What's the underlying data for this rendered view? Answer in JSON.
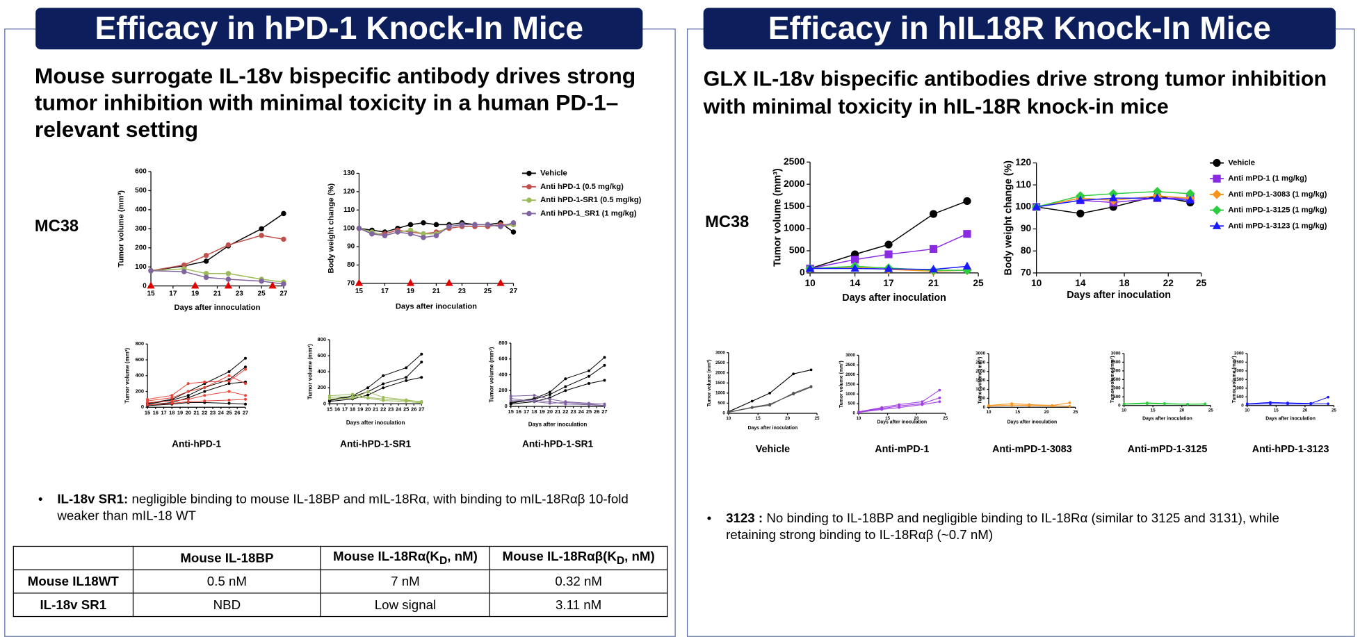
{
  "panels": [
    {
      "header": "Efficacy in hPD-1 Knock-In Mice",
      "subtitle": "Mouse surrogate IL-18v bispecific antibody drives strong tumor inhibition with minimal toxicity in a human PD-1–relevant setting",
      "model": "MC38",
      "bullet": {
        "term": "IL-18v SR1:",
        "text": "negligible binding to mouse IL-18BP and mIL-18Rα, with binding to mIL-18Rαβ 10-fold weaker than mIL-18 WT"
      },
      "table": {
        "columns": [
          [
            "Mouse IL-18BP"
          ],
          [
            "Mouse IL-18Rα(K",
            "D",
            ", nM)"
          ],
          [
            "Mouse IL-18Rαβ(K",
            "D",
            ", nM)"
          ]
        ],
        "rows": [
          [
            "Mouse IL18WT",
            "0.5 nM",
            "7 nM",
            "0.32 nM"
          ],
          [
            "IL-18v SR1",
            "NBD",
            "Low signal",
            "3.11 nM"
          ]
        ]
      }
    },
    {
      "header": "Efficacy in hIL18R Knock-In Mice",
      "subtitle": "GLX IL-18v bispecific antibodies drive strong tumor inhibition with minimal toxicity in hIL-18R knock-in mice",
      "model": "MC38",
      "bullet": {
        "term": "3123 :",
        "text": "No binding to IL-18BP and negligible binding to IL-18Rα (similar to 3125 and 3131), while retaining strong binding to IL-18Rαβ (~0.7 nM)"
      }
    }
  ],
  "chart_data": [
    {
      "type": "line",
      "y_label": "Tumor volume (mm³)",
      "x_label": "Days after innoculation",
      "xlim": [
        15,
        27
      ],
      "xticks": [
        15,
        17,
        19,
        21,
        23,
        25,
        27
      ],
      "ylim": [
        0,
        600
      ],
      "yticks": [
        0,
        100,
        200,
        300,
        400,
        500,
        600
      ],
      "x": [
        15,
        18,
        20,
        22,
        25,
        27
      ],
      "dosing_days": [
        15,
        19,
        22,
        26
      ],
      "series": [
        {
          "color": "#000000",
          "marker": "circle",
          "values": [
            80,
            105,
            130,
            210,
            300,
            380
          ]
        },
        {
          "color": "#c0504d",
          "marker": "circle",
          "values": [
            80,
            110,
            160,
            215,
            265,
            245
          ]
        },
        {
          "color": "#9bbb59",
          "marker": "circle",
          "values": [
            80,
            90,
            65,
            65,
            35,
            20
          ]
        },
        {
          "color": "#8064a2",
          "marker": "circle",
          "values": [
            80,
            75,
            45,
            35,
            25,
            10
          ]
        }
      ]
    },
    {
      "type": "line",
      "y_label": "Body weight change (%)",
      "x_label": "Days after inoculation",
      "xlim": [
        15,
        27
      ],
      "xticks": [
        15,
        17,
        19,
        21,
        23,
        25,
        27
      ],
      "ylim": [
        70,
        130
      ],
      "yticks": [
        70,
        80,
        90,
        100,
        110,
        120,
        130
      ],
      "x": [
        15,
        16,
        17,
        18,
        19,
        20,
        21,
        22,
        23,
        24,
        25,
        26,
        27
      ],
      "dosing_days": [
        15,
        19,
        22,
        26
      ],
      "legend": "right",
      "series": [
        {
          "name": "Vehicle",
          "color": "#000000",
          "marker": "circle",
          "values": [
            100,
            99,
            98,
            100,
            102,
            103,
            102,
            102,
            103,
            102,
            102,
            103,
            98
          ]
        },
        {
          "name": "Anti hPD-1 (0.5 mg/kg)",
          "color": "#c0504d",
          "marker": "circle",
          "values": [
            100,
            97,
            97,
            99,
            98,
            97,
            98,
            100,
            101,
            101,
            101,
            102,
            102
          ]
        },
        {
          "name": "Anti hPD-1-SR1 (0.5 mg/kg)",
          "color": "#9bbb59",
          "marker": "circle",
          "values": [
            100,
            98,
            96,
            98,
            99,
            97,
            97,
            101,
            102,
            102,
            102,
            101,
            102
          ]
        },
        {
          "name": "Anti hPD-1_SR1 (1 mg/kg)",
          "color": "#8064a2",
          "marker": "circle",
          "values": [
            100,
            97,
            96,
            98,
            97,
            95,
            96,
            101,
            102,
            102,
            102,
            101,
            103
          ]
        }
      ]
    },
    {
      "type": "line",
      "title": "Anti-hPD-1",
      "y_label": "Tumor volume (mm³)",
      "xlim": [
        15,
        27
      ],
      "xticks": [
        15,
        16,
        17,
        18,
        19,
        20,
        21,
        22,
        23,
        24,
        25,
        26,
        27
      ],
      "ylim": [
        0,
        800
      ],
      "yticks": [
        0,
        200,
        400,
        600,
        800
      ],
      "x": [
        15,
        18,
        20,
        22,
        25,
        27
      ],
      "series": [
        {
          "color": "#000000",
          "marker": "circle",
          "values": [
            50,
            100,
            200,
            300,
            450,
            620
          ]
        },
        {
          "color": "#000000",
          "marker": "circle",
          "values": [
            40,
            90,
            150,
            250,
            350,
            510
          ]
        },
        {
          "color": "#000000",
          "marker": "circle",
          "values": [
            30,
            60,
            120,
            200,
            300,
            320
          ]
        },
        {
          "color": "#000000",
          "marker": "circle",
          "values": [
            20,
            40,
            60,
            60,
            50,
            40
          ]
        },
        {
          "color": "#e8433a",
          "marker": "circle",
          "values": [
            100,
            150,
            300,
            320,
            330,
            480
          ]
        },
        {
          "color": "#e8433a",
          "marker": "circle",
          "values": [
            80,
            120,
            200,
            250,
            400,
            300
          ]
        },
        {
          "color": "#e8433a",
          "marker": "circle",
          "values": [
            60,
            80,
            100,
            150,
            200,
            150
          ]
        },
        {
          "color": "#e8433a",
          "marker": "circle",
          "values": [
            30,
            50,
            70,
            80,
            90,
            100
          ]
        }
      ]
    },
    {
      "type": "line",
      "title": "Anti-hPD-1-SR1",
      "y_label": "Tumor volume (mm³)",
      "x_label": "Days after inoculation",
      "xlim": [
        15,
        27
      ],
      "xticks": [
        15,
        16,
        17,
        18,
        19,
        20,
        21,
        22,
        23,
        24,
        25,
        26,
        27
      ],
      "ylim": [
        0,
        800
      ],
      "yticks": [
        0,
        200,
        400,
        600,
        800
      ],
      "x": [
        15,
        18,
        20,
        22,
        25,
        27
      ],
      "series": [
        {
          "color": "#000000",
          "marker": "circle",
          "values": [
            50,
            100,
            200,
            350,
            450,
            620
          ]
        },
        {
          "color": "#000000",
          "marker": "circle",
          "values": [
            40,
            90,
            150,
            250,
            330,
            520
          ]
        },
        {
          "color": "#000000",
          "marker": "circle",
          "values": [
            30,
            60,
            110,
            200,
            290,
            330
          ]
        },
        {
          "color": "#9bbb59",
          "marker": "circle",
          "values": [
            100,
            120,
            80,
            60,
            40,
            30
          ]
        },
        {
          "color": "#9bbb59",
          "marker": "circle",
          "values": [
            60,
            70,
            150,
            80,
            50,
            20
          ]
        },
        {
          "color": "#9bbb59",
          "marker": "circle",
          "values": [
            80,
            90,
            70,
            40,
            30,
            10
          ]
        }
      ]
    },
    {
      "type": "line",
      "title": "Anti-hPD-1-SR1",
      "y_label": "Tumor volume (mm³)",
      "x_label": "Days after inoculation",
      "xlim": [
        15,
        27
      ],
      "xticks": [
        15,
        16,
        17,
        18,
        19,
        20,
        21,
        22,
        23,
        24,
        25,
        26,
        27
      ],
      "ylim": [
        0,
        800
      ],
      "yticks": [
        0,
        200,
        400,
        600,
        800
      ],
      "x": [
        15,
        18,
        20,
        22,
        25,
        27
      ],
      "series": [
        {
          "color": "#000000",
          "marker": "circle",
          "values": [
            50,
            100,
            180,
            350,
            450,
            620
          ]
        },
        {
          "color": "#000000",
          "marker": "circle",
          "values": [
            40,
            90,
            150,
            250,
            380,
            520
          ]
        },
        {
          "color": "#000000",
          "marker": "circle",
          "values": [
            30,
            60,
            110,
            200,
            290,
            330
          ]
        },
        {
          "color": "#8064a2",
          "marker": "circle",
          "values": [
            130,
            140,
            90,
            60,
            40,
            30
          ]
        },
        {
          "color": "#8064a2",
          "marker": "circle",
          "values": [
            100,
            60,
            40,
            50,
            30,
            10
          ]
        },
        {
          "color": "#8064a2",
          "marker": "circle",
          "values": [
            70,
            80,
            60,
            30,
            20,
            10
          ]
        }
      ]
    },
    {
      "type": "line",
      "y_label": "Tumor volume (mm³)",
      "x_label": "Days after inoculation",
      "xlim": [
        10,
        25
      ],
      "xticks": [
        10,
        14,
        17,
        21,
        25
      ],
      "ylim": [
        0,
        2500
      ],
      "yticks": [
        0,
        500,
        1000,
        1500,
        2000,
        2500
      ],
      "x": [
        10,
        14,
        17,
        21,
        24
      ],
      "series": [
        {
          "color": "#000000",
          "marker": "circle",
          "values": [
            100,
            420,
            640,
            1330,
            1620
          ]
        },
        {
          "color": "#8a2be2",
          "marker": "square",
          "values": [
            100,
            300,
            420,
            540,
            880
          ]
        },
        {
          "color": "#f7941d",
          "marker": "diamond",
          "values": [
            100,
            130,
            80,
            40,
            60
          ]
        },
        {
          "color": "#2ecc40",
          "marker": "diamond",
          "values": [
            100,
            150,
            110,
            60,
            60
          ]
        },
        {
          "color": "#1a1aff",
          "marker": "triangle",
          "values": [
            100,
            100,
            90,
            80,
            150
          ]
        }
      ]
    },
    {
      "type": "line",
      "y_label": "Body weight change (%)",
      "x_label": "Days after inoculation",
      "xlim": [
        10,
        25
      ],
      "xticks": [
        10,
        14,
        18,
        22,
        25
      ],
      "ylim": [
        70,
        120
      ],
      "yticks": [
        70,
        80,
        90,
        100,
        110,
        120
      ],
      "x": [
        10,
        14,
        17,
        21,
        24
      ],
      "legend": "right",
      "series": [
        {
          "name": "Vehicle",
          "color": "#000000",
          "marker": "circle",
          "values": [
            100,
            97,
            100,
            105,
            102
          ]
        },
        {
          "name": "Anti mPD-1 (1 mg/kg)",
          "color": "#8a2be2",
          "marker": "square",
          "values": [
            100,
            103,
            102,
            104,
            104
          ]
        },
        {
          "name": "Anti mPD-1-3083 (1 mg/kg)",
          "color": "#f7941d",
          "marker": "diamond",
          "values": [
            100,
            104,
            103,
            105,
            104
          ]
        },
        {
          "name": "Anti mPD-1-3125 (1 mg/kg)",
          "color": "#2ecc40",
          "marker": "diamond",
          "values": [
            100,
            105,
            106,
            107,
            106
          ]
        },
        {
          "name": "Anti mPD-1-3123 (1 mg/kg)",
          "color": "#1a1aff",
          "marker": "triangle",
          "values": [
            100,
            103,
            104,
            104,
            103
          ]
        }
      ]
    },
    {
      "type": "line",
      "title": "Vehicle",
      "y_label": "Tumor volume (mm³)",
      "x_label": "Days after inoculation",
      "xlim": [
        10,
        25
      ],
      "xticks": [
        10,
        15,
        20,
        25
      ],
      "ylim": [
        0,
        3000
      ],
      "yticks": [
        0,
        500,
        1000,
        1500,
        2000,
        2500,
        3000
      ],
      "x": [
        10,
        14,
        17,
        21,
        24
      ],
      "series": [
        {
          "color": "#000000",
          "marker": "circle",
          "values": [
            80,
            600,
            1000,
            1950,
            2150
          ]
        },
        {
          "color": "#555555",
          "marker": "circle",
          "values": [
            60,
            300,
            450,
            950,
            1300
          ]
        },
        {
          "color": "#555555",
          "marker": "circle",
          "values": [
            50,
            280,
            400,
            1000,
            1330
          ]
        }
      ]
    },
    {
      "type": "line",
      "title": "Anti-mPD-1",
      "y_label": "Tumor volume (mm³)",
      "x_label": "Days after inoculation",
      "xlim": [
        10,
        25
      ],
      "xticks": [
        10,
        15,
        20,
        25
      ],
      "ylim": [
        0,
        3000
      ],
      "yticks": [
        0,
        500,
        1000,
        1500,
        2000,
        2500,
        3000
      ],
      "x": [
        10,
        14,
        17,
        21,
        24
      ],
      "series": [
        {
          "color": "#a040e0",
          "marker": "circle",
          "values": [
            80,
            300,
            450,
            600,
            1200
          ]
        },
        {
          "color": "#a040e0",
          "marker": "circle",
          "values": [
            60,
            250,
            380,
            500,
            800
          ]
        },
        {
          "color": "#a040e0",
          "marker": "circle",
          "values": [
            50,
            200,
            300,
            450,
            600
          ]
        }
      ]
    },
    {
      "type": "line",
      "title": "Anti-mPD-1-3083",
      "y_label": "Tumor volume (mm³)",
      "x_label": "Days after inoculation",
      "xlim": [
        10,
        25
      ],
      "xticks": [
        10,
        15,
        20,
        25
      ],
      "ylim": [
        0,
        3000
      ],
      "yticks": [
        0,
        500,
        1000,
        1500,
        2000,
        2500,
        3000
      ],
      "x": [
        10,
        14,
        17,
        21,
        24
      ],
      "series": [
        {
          "color": "#f7941d",
          "marker": "circle",
          "values": [
            100,
            200,
            150,
            100,
            250
          ]
        },
        {
          "color": "#f7941d",
          "marker": "circle",
          "values": [
            80,
            120,
            100,
            80,
            60
          ]
        }
      ]
    },
    {
      "type": "line",
      "title": "Anti-mPD-1-3125",
      "y_label": "Tumor volume (mm³)",
      "x_label": "Days after inoculation",
      "xlim": [
        10,
        25
      ],
      "xticks": [
        10,
        15,
        20,
        25
      ],
      "ylim": [
        0,
        3000
      ],
      "yticks": [
        0,
        500,
        1000,
        1500,
        2000,
        2500,
        3000
      ],
      "x": [
        10,
        14,
        17,
        21,
        24
      ],
      "series": [
        {
          "color": "#2ecc40",
          "marker": "circle",
          "values": [
            100,
            150,
            120,
            80,
            100
          ]
        },
        {
          "color": "#2ecc40",
          "marker": "circle",
          "values": [
            80,
            100,
            90,
            70,
            80
          ]
        }
      ]
    },
    {
      "type": "line",
      "title": "Anti-hPD-1-3123",
      "y_label": "Tumor volume (mm³)",
      "x_label": "Days after inoculation",
      "xlim": [
        10,
        25
      ],
      "xticks": [
        10,
        15,
        20,
        25
      ],
      "ylim": [
        0,
        3000
      ],
      "yticks": [
        0,
        500,
        1000,
        1500,
        2000,
        2500,
        3000
      ],
      "x": [
        10,
        14,
        17,
        21,
        24
      ],
      "series": [
        {
          "color": "#1a1aff",
          "marker": "circle",
          "values": [
            100,
            180,
            150,
            120,
            480
          ]
        },
        {
          "color": "#1a1aff",
          "marker": "circle",
          "values": [
            80,
            100,
            90,
            90,
            100
          ]
        }
      ]
    }
  ]
}
